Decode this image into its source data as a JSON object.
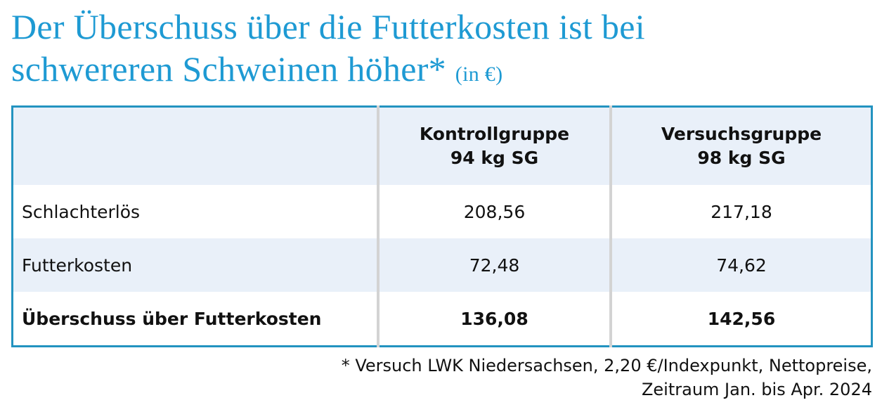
{
  "title": {
    "line1": "Der Überschuss über die Futterkosten ist bei",
    "line2": "schwereren Schweinen höher*",
    "unit": "(in €)"
  },
  "table": {
    "headers": [
      {
        "line1": "",
        "line2": ""
      },
      {
        "line1": "Kontrollgruppe",
        "line2": "94 kg SG"
      },
      {
        "line1": "Versuchsgruppe",
        "line2": "98 kg SG"
      }
    ],
    "rows": [
      {
        "label": "Schlachterlös",
        "kontroll": "208,56",
        "versuch": "217,18"
      },
      {
        "label": "Futterkosten",
        "kontroll": "72,48",
        "versuch": "74,62"
      },
      {
        "label": "Überschuss über Futterkosten",
        "kontroll": "136,08",
        "versuch": "142,56"
      }
    ]
  },
  "footnote": {
    "line1": "* Versuch LWK Niedersachsen, 2,20 €/Indexpunkt, Nettopreise,",
    "line2": "Zeitraum Jan. bis Apr. 2024"
  },
  "colors": {
    "accent": "#1e9ad3",
    "border": "#2393c0",
    "shade": "#e9f0f9"
  }
}
